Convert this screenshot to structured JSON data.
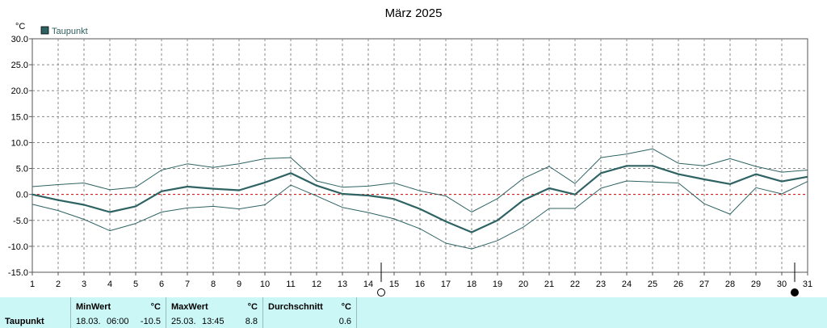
{
  "chart_data": {
    "type": "line",
    "title": "März 2025",
    "unit_label": "°C",
    "legend": [
      "Taupunkt"
    ],
    "legend_placement": "top-left",
    "grid": true,
    "zero_line_color": "#cc0000",
    "series_color": "#2f6363",
    "x": [
      1,
      2,
      3,
      4,
      5,
      6,
      7,
      8,
      9,
      10,
      11,
      12,
      13,
      14,
      15,
      16,
      17,
      18,
      19,
      20,
      21,
      22,
      23,
      24,
      25,
      26,
      27,
      28,
      29,
      30,
      31
    ],
    "xlim": [
      1,
      31
    ],
    "ylim": [
      -15,
      30
    ],
    "yticks": [
      "-15.0",
      "-10.0",
      "-5.0",
      "0.0",
      "5.0",
      "10.0",
      "15.0",
      "20.0",
      "25.0",
      "30.0"
    ],
    "xticks": [
      "1",
      "2",
      "3",
      "4",
      "5",
      "6",
      "7",
      "8",
      "9",
      "10",
      "11",
      "12",
      "13",
      "14",
      "15",
      "16",
      "17",
      "18",
      "19",
      "20",
      "21",
      "22",
      "23",
      "24",
      "25",
      "26",
      "27",
      "28",
      "29",
      "30",
      "31"
    ],
    "series": [
      {
        "name": "Taupunkt",
        "role": "average",
        "values": [
          0.0,
          -1.1,
          -2.0,
          -3.4,
          -2.3,
          0.6,
          1.5,
          1.1,
          0.8,
          2.3,
          4.1,
          1.7,
          0.1,
          -0.2,
          -0.9,
          -2.8,
          -5.2,
          -7.3,
          -5.0,
          -1.1,
          1.2,
          0.0,
          4.1,
          5.5,
          5.5,
          3.9,
          2.9,
          2.0,
          3.9,
          2.5,
          3.4
        ]
      },
      {
        "role": "max",
        "values": [
          1.5,
          1.9,
          2.2,
          0.9,
          1.4,
          4.7,
          5.9,
          5.2,
          5.9,
          6.9,
          7.1,
          2.6,
          1.4,
          1.6,
          2.2,
          0.7,
          -0.3,
          -3.4,
          -0.8,
          3.1,
          5.4,
          2.1,
          7.1,
          7.8,
          8.8,
          6.0,
          5.5,
          6.9,
          5.4,
          4.3,
          4.7
        ]
      },
      {
        "role": "min",
        "values": [
          -1.9,
          -3.1,
          -4.8,
          -7.0,
          -5.6,
          -3.4,
          -2.6,
          -2.3,
          -2.8,
          -2.0,
          1.8,
          -0.3,
          -2.5,
          -3.5,
          -4.7,
          -6.6,
          -9.4,
          -10.5,
          -8.9,
          -6.3,
          -2.7,
          -2.7,
          1.2,
          2.6,
          2.4,
          2.2,
          -1.8,
          -3.8,
          1.3,
          0.1,
          2.5
        ]
      }
    ],
    "moon_markers": [
      {
        "day": 14,
        "phase": "new"
      },
      {
        "day": 30,
        "phase": "full"
      }
    ]
  },
  "stats": {
    "row_label": "Taupunkt",
    "min_header": "MinWert",
    "min_unit": "°C",
    "min_date": "18.03.",
    "min_time": "06:00",
    "min_value": "-10.5",
    "max_header": "MaxWert",
    "max_unit": "°C",
    "max_date": "25.03.",
    "max_time": "13:45",
    "max_value": "8.8",
    "avg_header": "Durchschnitt",
    "avg_unit": "°C",
    "avg_value": "0.6"
  }
}
